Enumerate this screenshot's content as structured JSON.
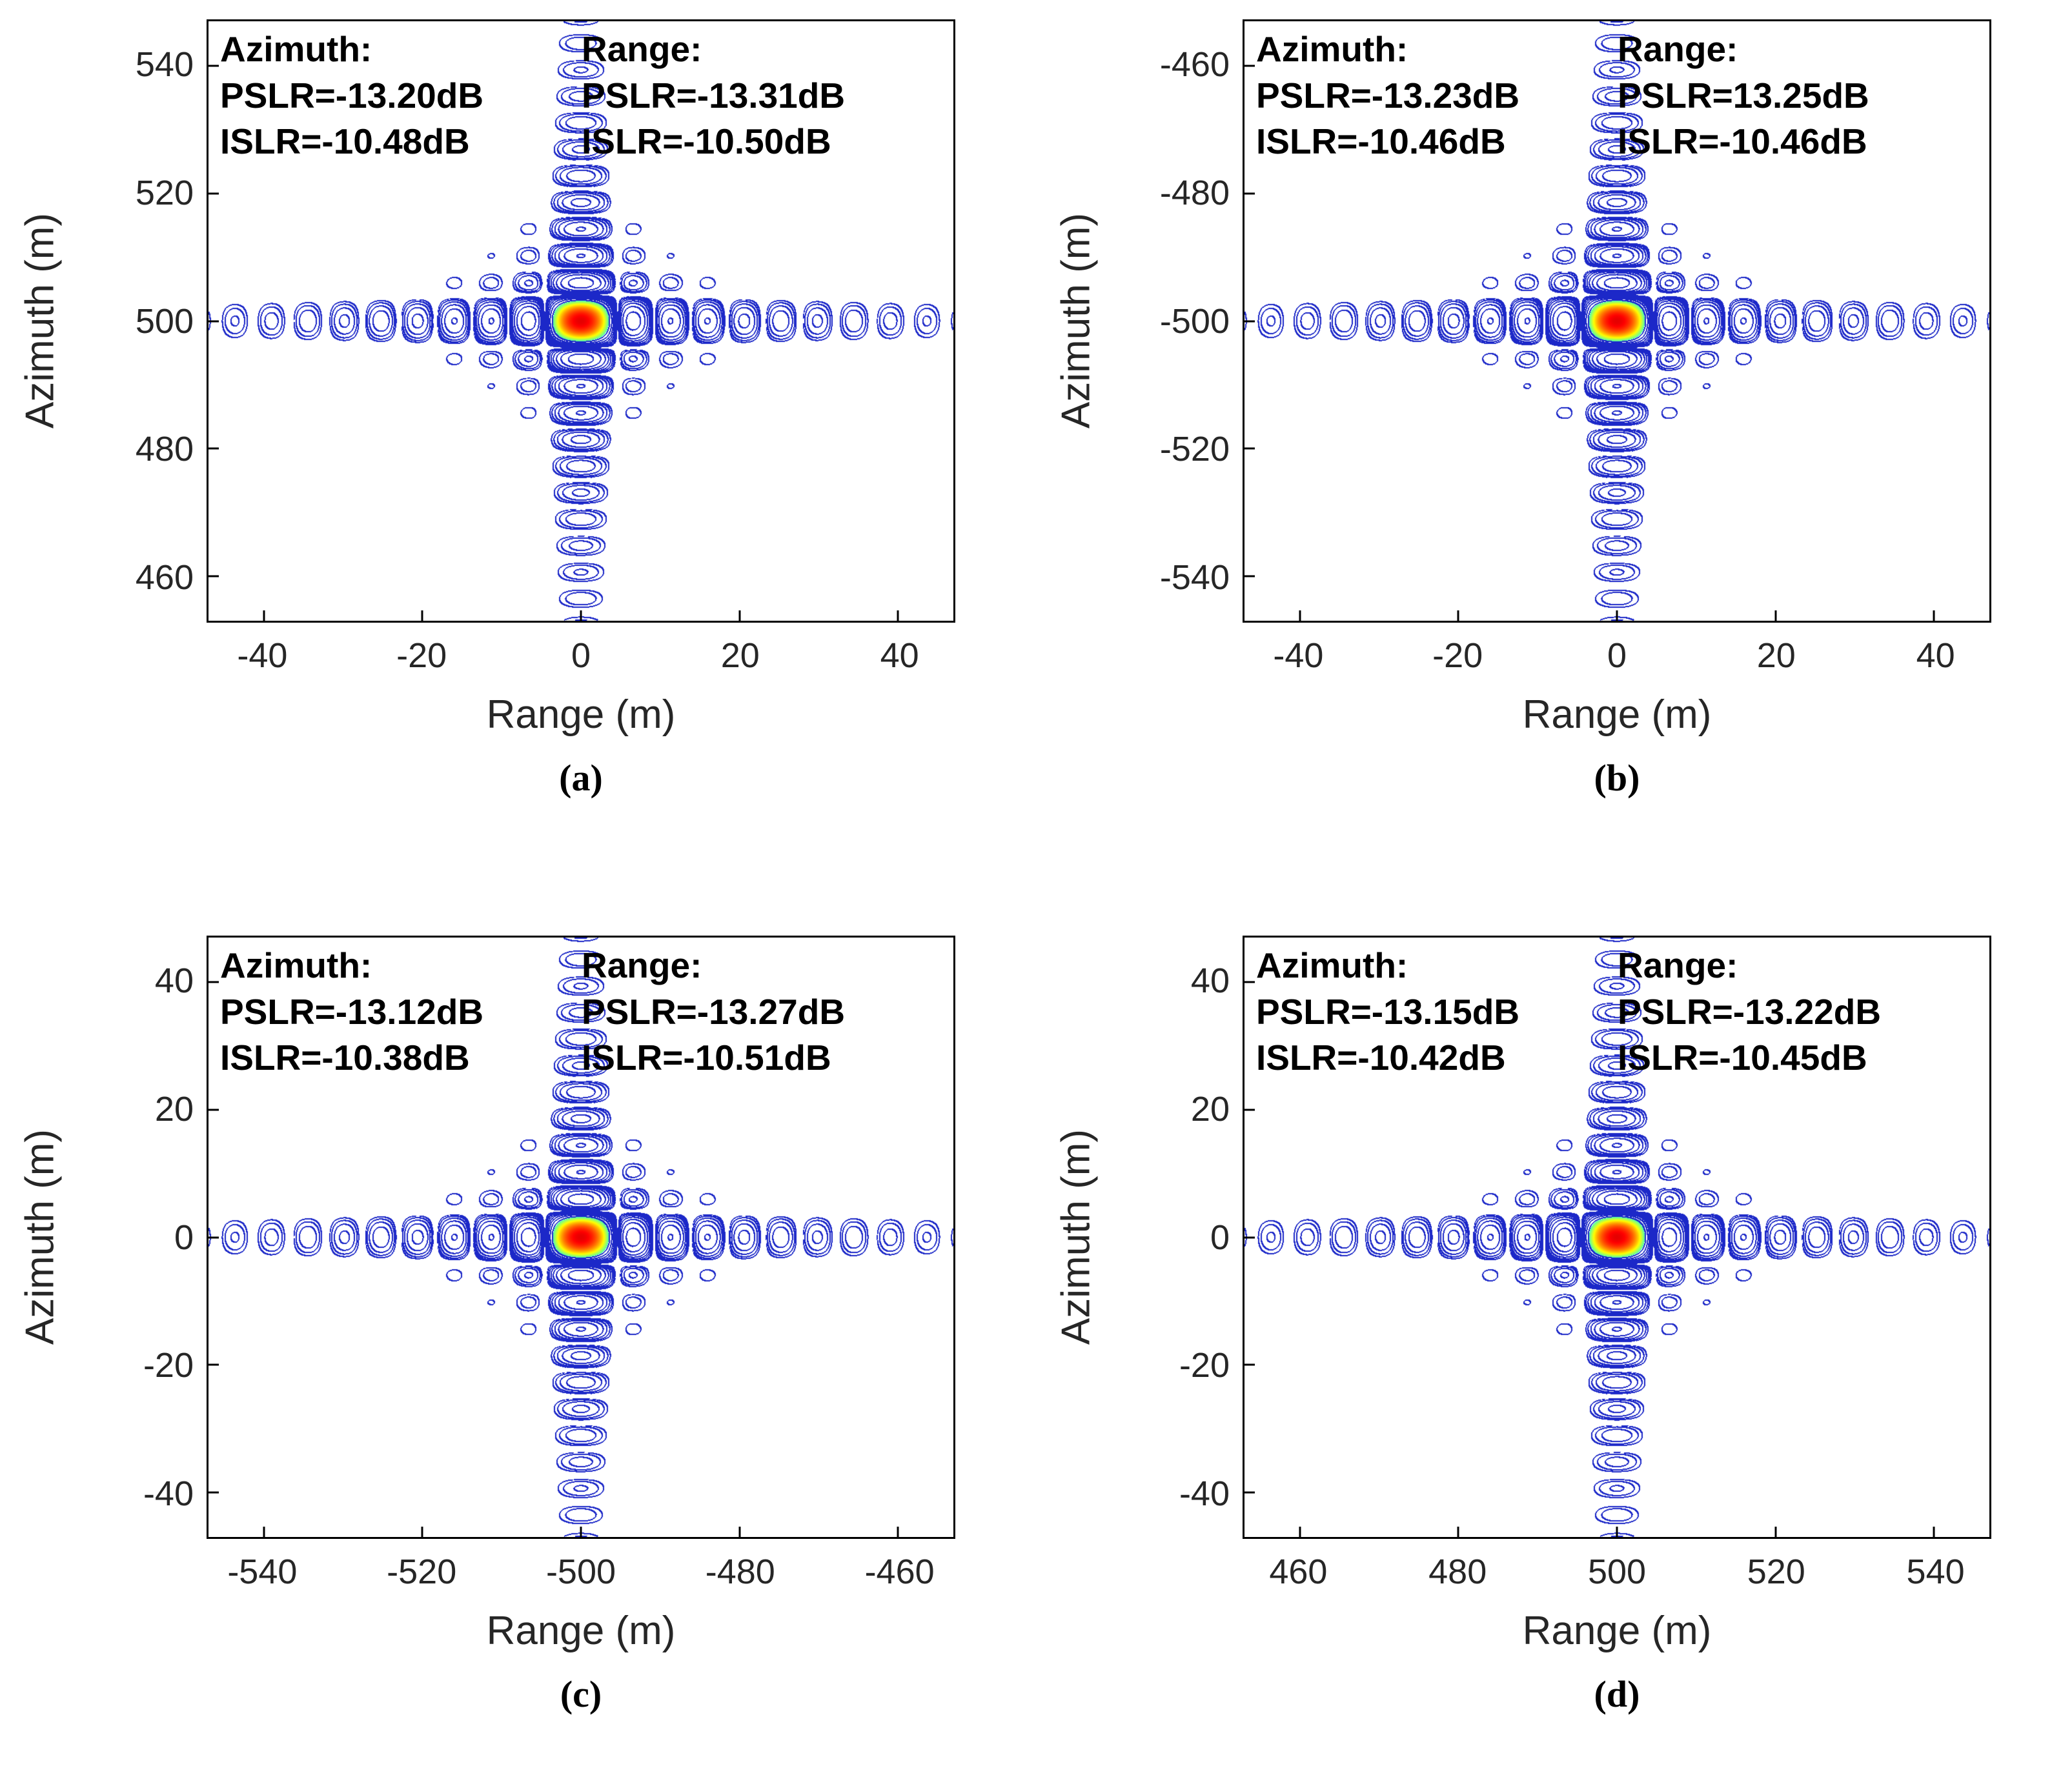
{
  "figure": {
    "background": "#FFFFFF",
    "contour_line_color": "#1C28C8",
    "hot_center_colors": [
      "#FF0000",
      "#FFA500",
      "#FFFF00",
      "#00C800"
    ]
  },
  "chart_data": {
    "type": "heatmap",
    "subtype": "contour",
    "description": "2x2 grid of SAR point-target impulse-response contour plots (2D sinc pattern) with azimuth/range PSLR and ISLR annotations",
    "render_params": {
      "null_spacing_range_m": 4.6,
      "null_spacing_azimuth_m": 4.15,
      "contour_step_db": 3,
      "contour_floor_db": -37,
      "fill_threshold_db": -11,
      "line_color": "#1C28C8"
    },
    "plots": [
      {
        "caption": "(a)",
        "xlabel": "Range (m)",
        "ylabel": "Azimuth (m)",
        "xlim": [
          -47,
          47
        ],
        "ytop": 547,
        "ybottom": 453,
        "xticks": [
          -40,
          -20,
          0,
          20,
          40
        ],
        "yticks": [
          540,
          520,
          500,
          480,
          460
        ],
        "center": {
          "x": 0,
          "y": 500
        },
        "annotations": {
          "azimuth": {
            "title": "Azimuth:",
            "pslr": "PSLR=-13.20dB",
            "islr": "ISLR=-10.48dB"
          },
          "range": {
            "title": "Range:",
            "pslr": "PSLR=-13.31dB",
            "islr": "ISLR=-10.50dB"
          }
        }
      },
      {
        "caption": "(b)",
        "xlabel": "Range (m)",
        "ylabel": "Azimuth (m)",
        "xlim": [
          -47,
          47
        ],
        "ytop": -453,
        "ybottom": -547,
        "xticks": [
          -40,
          -20,
          0,
          20,
          40
        ],
        "yticks": [
          -460,
          -480,
          -500,
          -520,
          -540
        ],
        "center": {
          "x": 0,
          "y": -500
        },
        "annotations": {
          "azimuth": {
            "title": "Azimuth:",
            "pslr": "PSLR=-13.23dB",
            "islr": "ISLR=-10.46dB"
          },
          "range": {
            "title": "Range:",
            "pslr": "PSLR=13.25dB",
            "islr": "ISLR=-10.46dB"
          }
        }
      },
      {
        "caption": "(c)",
        "xlabel": "Range (m)",
        "ylabel": "Azimuth (m)",
        "xlim": [
          -547,
          -453
        ],
        "ytop": 47,
        "ybottom": -47,
        "xticks": [
          -540,
          -520,
          -500,
          -480,
          -460
        ],
        "yticks": [
          40,
          20,
          0,
          -20,
          -40
        ],
        "center": {
          "x": -500,
          "y": 0
        },
        "annotations": {
          "azimuth": {
            "title": "Azimuth:",
            "pslr": "PSLR=-13.12dB",
            "islr": "ISLR=-10.38dB"
          },
          "range": {
            "title": "Range:",
            "pslr": "PSLR=-13.27dB",
            "islr": "ISLR=-10.51dB"
          }
        }
      },
      {
        "caption": "(d)",
        "xlabel": "Range (m)",
        "ylabel": "Azimuth (m)",
        "xlim": [
          453,
          547
        ],
        "ytop": 47,
        "ybottom": -47,
        "xticks": [
          460,
          480,
          500,
          520,
          540
        ],
        "yticks": [
          40,
          20,
          0,
          -20,
          -40
        ],
        "center": {
          "x": 500,
          "y": 0
        },
        "annotations": {
          "azimuth": {
            "title": "Azimuth:",
            "pslr": "PSLR=-13.15dB",
            "islr": "ISLR=-10.42dB"
          },
          "range": {
            "title": "Range:",
            "pslr": "PSLR=-13.22dB",
            "islr": "ISLR=-10.45dB"
          }
        }
      }
    ]
  }
}
